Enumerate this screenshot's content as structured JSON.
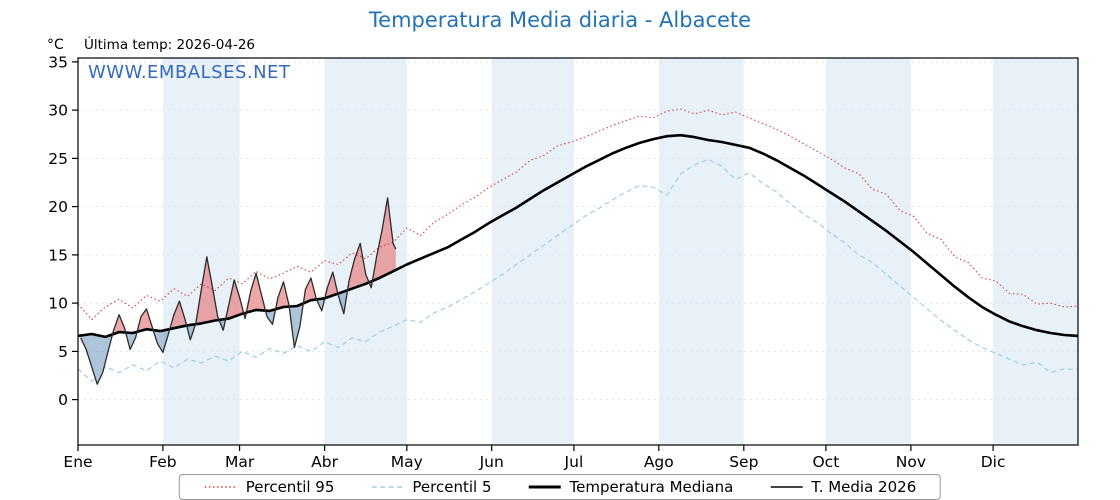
{
  "title": "Temperatura Media diaria - Albacete",
  "annotation": "Última temp: 2026-04-26",
  "ylabel": "°C",
  "watermark": "WWW.EMBALSES.NET",
  "colors": {
    "title_blue": "#2273b6",
    "watermark_blue": "#3569c0",
    "band_light_blue": "#e8f0f8",
    "p95_red": "#d9413d",
    "p5_light_blue": "#9fcfe5",
    "median_black": "#000000",
    "t2026_dark": "#2b2b2b",
    "fill_above_red": "#e57373",
    "fill_below_blue": "#7da0c4"
  },
  "chart_data": {
    "type": "line",
    "title": "Temperatura Media diaria - Albacete",
    "ylabel": "°C",
    "months": [
      "Ene",
      "Feb",
      "Mar",
      "Abr",
      "May",
      "Jun",
      "Jul",
      "Ago",
      "Sep",
      "Oct",
      "Nov",
      "Dic"
    ],
    "month_starts": [
      0,
      31,
      59,
      90,
      120,
      151,
      181,
      212,
      243,
      273,
      304,
      334
    ],
    "yticks": [
      0,
      5,
      10,
      15,
      20,
      25,
      30,
      35
    ],
    "ylim": [
      -4.7,
      35.4
    ],
    "xlim": [
      0,
      365
    ],
    "grid": true,
    "band_color": "#e8f0f8",
    "legend_position": "bottom",
    "x_days": [
      0,
      5,
      10,
      15,
      20,
      25,
      30,
      35,
      40,
      45,
      50,
      55,
      60,
      65,
      70,
      75,
      80,
      85,
      90,
      95,
      100,
      105,
      110,
      115,
      120,
      125,
      130,
      135,
      140,
      145,
      150,
      155,
      160,
      165,
      170,
      175,
      180,
      185,
      190,
      195,
      200,
      205,
      210,
      215,
      220,
      225,
      230,
      235,
      240,
      245,
      250,
      255,
      260,
      265,
      270,
      275,
      280,
      285,
      290,
      295,
      300,
      305,
      310,
      315,
      320,
      325,
      330,
      335,
      340,
      345,
      350,
      355,
      360,
      365
    ],
    "series": [
      {
        "id": "p95",
        "name": "Percentil 95",
        "color": "#d9413d",
        "width": 1.1,
        "dash": "1.5 2.6",
        "values": [
          9.9,
          8.3,
          9.6,
          10.4,
          9.5,
          10.8,
          10.2,
          11.5,
          10.7,
          12.0,
          11.3,
          12.6,
          12.0,
          13.3,
          12.5,
          13.1,
          13.8,
          13.2,
          14.4,
          14.0,
          15.2,
          14.6,
          15.8,
          16.3,
          17.8,
          17.0,
          18.4,
          19.2,
          20.2,
          21.0,
          22.0,
          22.8,
          23.6,
          24.8,
          25.3,
          26.3,
          26.7,
          27.2,
          27.8,
          28.4,
          28.9,
          29.4,
          29.2,
          29.9,
          30.1,
          29.6,
          30.0,
          29.5,
          29.8,
          29.2,
          28.6,
          28.0,
          27.3,
          26.5,
          25.7,
          24.9,
          24.0,
          23.4,
          21.8,
          21.3,
          19.6,
          19.0,
          17.2,
          16.6,
          14.8,
          14.2,
          12.6,
          12.3,
          11.0,
          10.9,
          9.9,
          10.0,
          9.6,
          9.7
        ]
      },
      {
        "id": "p5",
        "name": "Percentil 5",
        "color": "#9fcfe5",
        "width": 1.2,
        "dash": "5 3.5",
        "values": [
          3.2,
          1.9,
          3.4,
          2.8,
          3.6,
          3.0,
          4.0,
          3.3,
          4.2,
          3.8,
          4.5,
          4.0,
          5.0,
          4.4,
          5.3,
          4.8,
          5.6,
          5.0,
          6.0,
          5.4,
          6.4,
          6.0,
          7.0,
          7.6,
          8.3,
          8.0,
          9.0,
          9.6,
          10.4,
          11.2,
          12.1,
          13.0,
          14.0,
          15.0,
          16.0,
          17.0,
          18.0,
          19.0,
          19.8,
          20.7,
          21.5,
          22.2,
          22.0,
          21.2,
          23.4,
          24.3,
          24.9,
          24.2,
          22.8,
          23.5,
          22.4,
          21.5,
          20.3,
          19.2,
          18.3,
          17.2,
          16.2,
          15.0,
          14.2,
          13.0,
          11.8,
          10.6,
          9.4,
          8.2,
          7.2,
          6.2,
          5.4,
          4.8,
          4.2,
          3.6,
          3.9,
          2.8,
          3.2,
          3.1
        ]
      },
      {
        "id": "median",
        "name": "Temperatura Mediana",
        "color": "#000000",
        "width": 2.6,
        "dash": null,
        "values": [
          6.6,
          6.8,
          6.5,
          7.0,
          6.9,
          7.3,
          7.1,
          7.4,
          7.7,
          7.9,
          8.2,
          8.4,
          8.9,
          9.3,
          9.2,
          9.6,
          9.7,
          10.3,
          10.5,
          11.0,
          11.5,
          12.0,
          12.6,
          13.3,
          14.0,
          14.6,
          15.2,
          15.8,
          16.6,
          17.4,
          18.3,
          19.1,
          19.9,
          20.8,
          21.7,
          22.5,
          23.3,
          24.1,
          24.8,
          25.5,
          26.1,
          26.6,
          27.0,
          27.3,
          27.4,
          27.2,
          26.9,
          26.7,
          26.4,
          26.1,
          25.5,
          24.8,
          24.0,
          23.2,
          22.3,
          21.4,
          20.5,
          19.5,
          18.5,
          17.5,
          16.4,
          15.3,
          14.1,
          12.9,
          11.7,
          10.6,
          9.6,
          8.8,
          8.1,
          7.6,
          7.2,
          6.9,
          6.7,
          6.6
        ]
      },
      {
        "id": "t2026",
        "name": "T. Media 2026",
        "color": "#2b2b2b",
        "width": 1.3,
        "dash": null,
        "fill_above": "#e57373",
        "fill_below": "#7da0c4",
        "x": [
          1,
          3,
          5,
          7,
          9,
          11,
          13,
          15,
          17,
          19,
          21,
          23,
          25,
          27,
          29,
          31,
          33,
          35,
          37,
          39,
          41,
          43,
          45,
          47,
          49,
          51,
          53,
          55,
          57,
          59,
          61,
          63,
          65,
          67,
          69,
          71,
          73,
          75,
          77,
          79,
          81,
          83,
          85,
          87,
          89,
          91,
          93,
          95,
          97,
          99,
          101,
          103,
          105,
          107,
          109,
          111,
          113,
          115,
          116
        ],
        "values": [
          6.4,
          5.2,
          3.4,
          1.6,
          2.8,
          5.0,
          7.2,
          8.8,
          7.4,
          5.2,
          6.4,
          8.6,
          9.4,
          7.6,
          5.8,
          4.9,
          6.8,
          8.8,
          10.2,
          8.4,
          6.2,
          7.9,
          11.4,
          14.8,
          11.8,
          8.6,
          7.2,
          9.8,
          12.4,
          10.6,
          8.4,
          11.2,
          13.1,
          10.8,
          8.6,
          7.8,
          10.6,
          12.2,
          9.8,
          5.4,
          7.6,
          11.4,
          12.6,
          10.4,
          9.2,
          11.6,
          13.2,
          10.8,
          8.9,
          12.4,
          14.6,
          16.2,
          13.0,
          11.6,
          14.8,
          17.6,
          20.9,
          16.2,
          15.6
        ]
      }
    ]
  }
}
